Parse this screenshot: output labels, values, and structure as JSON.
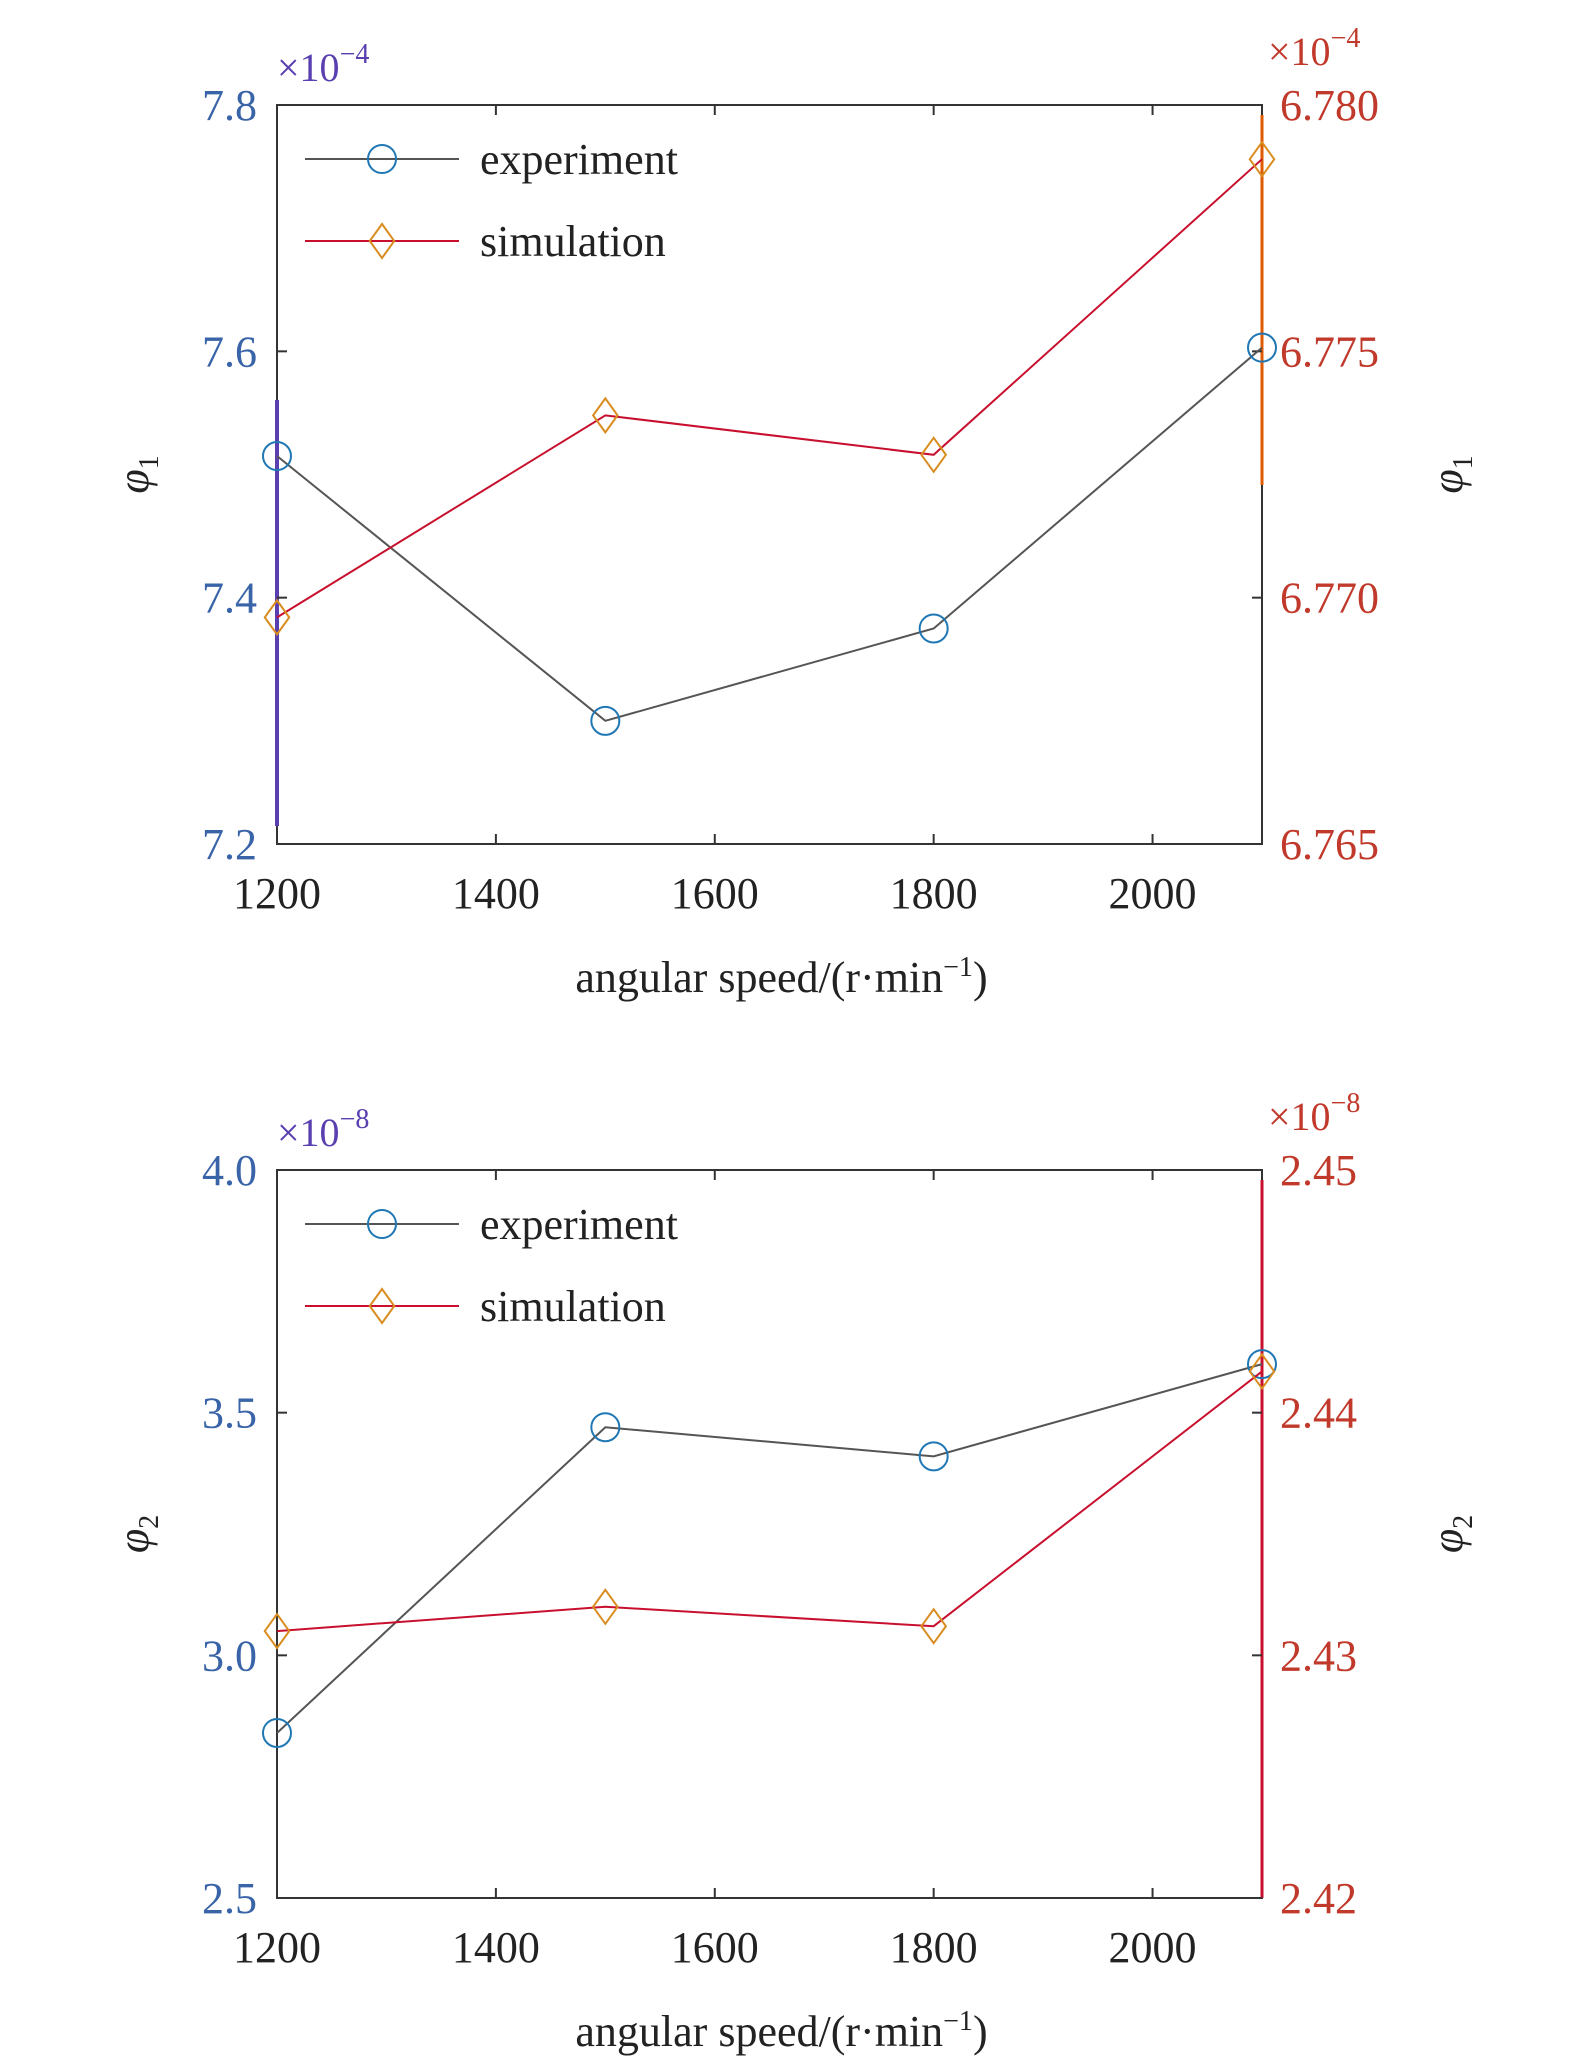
{
  "colors": {
    "experiment_line": "#555555",
    "experiment_marker": "#1f77b4",
    "simulation_line": "#c8102e",
    "simulation_marker": "#d98c1f",
    "left_axis_text": "#3a64a8",
    "left_axis_text_2": "#3a64a8",
    "right_axis_text": "#c0392b",
    "left_spine_top": "#5a3fb0",
    "right_spine": "#e05a00"
  },
  "chart_data": [
    {
      "type": "line",
      "xlabel": "angular speed/(r·min",
      "xlabel_sup": "−1",
      "xlabel_end": ")",
      "xlim": [
        1200,
        2100
      ],
      "xticks": [
        1200,
        1400,
        1600,
        1800,
        2000
      ],
      "xtick_labels": [
        "1200",
        "1400",
        "1600",
        "1800",
        "2000"
      ],
      "ylabel_left": "φ",
      "ylabel_left_sub": "1",
      "ylabel_right": "φ",
      "ylabel_right_sub": "1",
      "ylim_left": [
        7.2,
        7.8
      ],
      "yticks_left": [
        7.2,
        7.4,
        7.6,
        7.8
      ],
      "ytick_labels_left": [
        "7.2",
        "7.4",
        "7.6",
        "7.8"
      ],
      "left_exponent_base": "×10",
      "left_exponent_power": "−4",
      "ylim_right": [
        6.765,
        6.78
      ],
      "yticks_right": [
        6.765,
        6.77,
        6.775,
        6.78
      ],
      "ytick_labels_right": [
        "6.765",
        "6.770",
        "6.775",
        "6.780"
      ],
      "right_exponent_base": "×10",
      "right_exponent_power": "−4",
      "legend_position": "top-left",
      "series": [
        {
          "name": "experiment",
          "axis": "left",
          "marker": "circle",
          "x": [
            1200,
            1500,
            1800,
            2100
          ],
          "values": [
            7.515,
            7.3,
            7.375,
            7.603
          ]
        },
        {
          "name": "simulation",
          "axis": "right",
          "marker": "diamond",
          "x": [
            1200,
            1500,
            1800,
            2100
          ],
          "values": [
            6.7696,
            6.7737,
            6.7729,
            6.7789
          ]
        }
      ]
    },
    {
      "type": "line",
      "xlabel": "angular speed/(r·min",
      "xlabel_sup": "−1",
      "xlabel_end": ")",
      "xlim": [
        1200,
        2100
      ],
      "xticks": [
        1200,
        1400,
        1600,
        1800,
        2000
      ],
      "xtick_labels": [
        "1200",
        "1400",
        "1600",
        "1800",
        "2000"
      ],
      "ylabel_left": "φ",
      "ylabel_left_sub": "2",
      "ylabel_right": "φ",
      "ylabel_right_sub": "2",
      "ylim_left": [
        2.5,
        4.0
      ],
      "yticks_left": [
        2.5,
        3.0,
        3.5,
        4.0
      ],
      "ytick_labels_left": [
        "2.5",
        "3.0",
        "3.5",
        "4.0"
      ],
      "left_exponent_base": "×10",
      "left_exponent_power": "−8",
      "ylim_right": [
        2.42,
        2.45
      ],
      "yticks_right": [
        2.42,
        2.43,
        2.44,
        2.45
      ],
      "ytick_labels_right": [
        "2.42",
        "2.43",
        "2.44",
        "2.45"
      ],
      "right_exponent_base": "×10",
      "right_exponent_power": "−8",
      "legend_position": "top-left",
      "series": [
        {
          "name": "experiment",
          "axis": "left",
          "marker": "circle",
          "x": [
            1200,
            1500,
            1800,
            2100
          ],
          "values": [
            2.84,
            3.47,
            3.41,
            3.6
          ]
        },
        {
          "name": "simulation",
          "axis": "right",
          "marker": "diamond",
          "x": [
            1200,
            1500,
            1800,
            2100
          ],
          "values": [
            2.431,
            2.432,
            2.4312,
            2.4417
          ]
        }
      ]
    }
  ]
}
